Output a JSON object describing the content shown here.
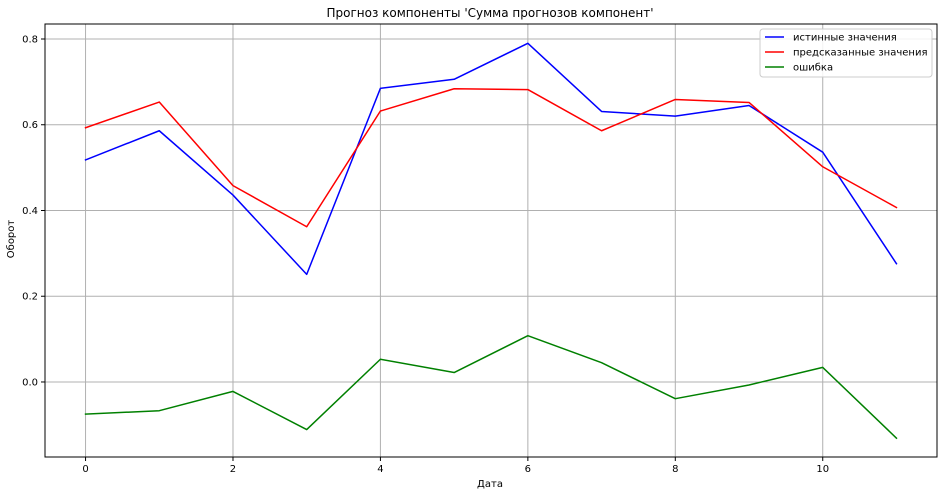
{
  "chart_data": {
    "type": "line",
    "title": "Прогноз компоненты 'Сумма прогнозов компонент'",
    "xlabel": "Дата",
    "ylabel": "Оборот",
    "x": [
      0,
      1,
      2,
      3,
      4,
      5,
      6,
      7,
      8,
      9,
      10,
      11
    ],
    "xlim": [
      -0.55,
      11.55
    ],
    "ylim": [
      -0.175,
      0.835
    ],
    "x_ticks": [
      0,
      2,
      4,
      6,
      8,
      10
    ],
    "x_tick_labels": [
      "0",
      "2",
      "4",
      "6",
      "8",
      "10"
    ],
    "y_ticks": [
      0.0,
      0.2,
      0.4,
      0.6,
      0.8
    ],
    "y_tick_labels": [
      "0.0",
      "0.2",
      "0.4",
      "0.6",
      "0.8"
    ],
    "grid": true,
    "legend_position": "top-right",
    "series": [
      {
        "name": "истинные значения",
        "color": "#0000ff",
        "values": [
          0.518,
          0.586,
          0.436,
          0.251,
          0.685,
          0.706,
          0.79,
          0.631,
          0.62,
          0.645,
          0.536,
          0.276
        ]
      },
      {
        "name": "предсказанные значения",
        "color": "#ff0000",
        "values": [
          0.593,
          0.653,
          0.458,
          0.362,
          0.632,
          0.684,
          0.682,
          0.586,
          0.659,
          0.652,
          0.502,
          0.407
        ]
      },
      {
        "name": "ошибка",
        "color": "#008000",
        "values": [
          -0.075,
          -0.067,
          -0.022,
          -0.111,
          0.053,
          0.022,
          0.108,
          0.045,
          -0.039,
          -0.007,
          0.034,
          -0.131
        ]
      }
    ]
  }
}
